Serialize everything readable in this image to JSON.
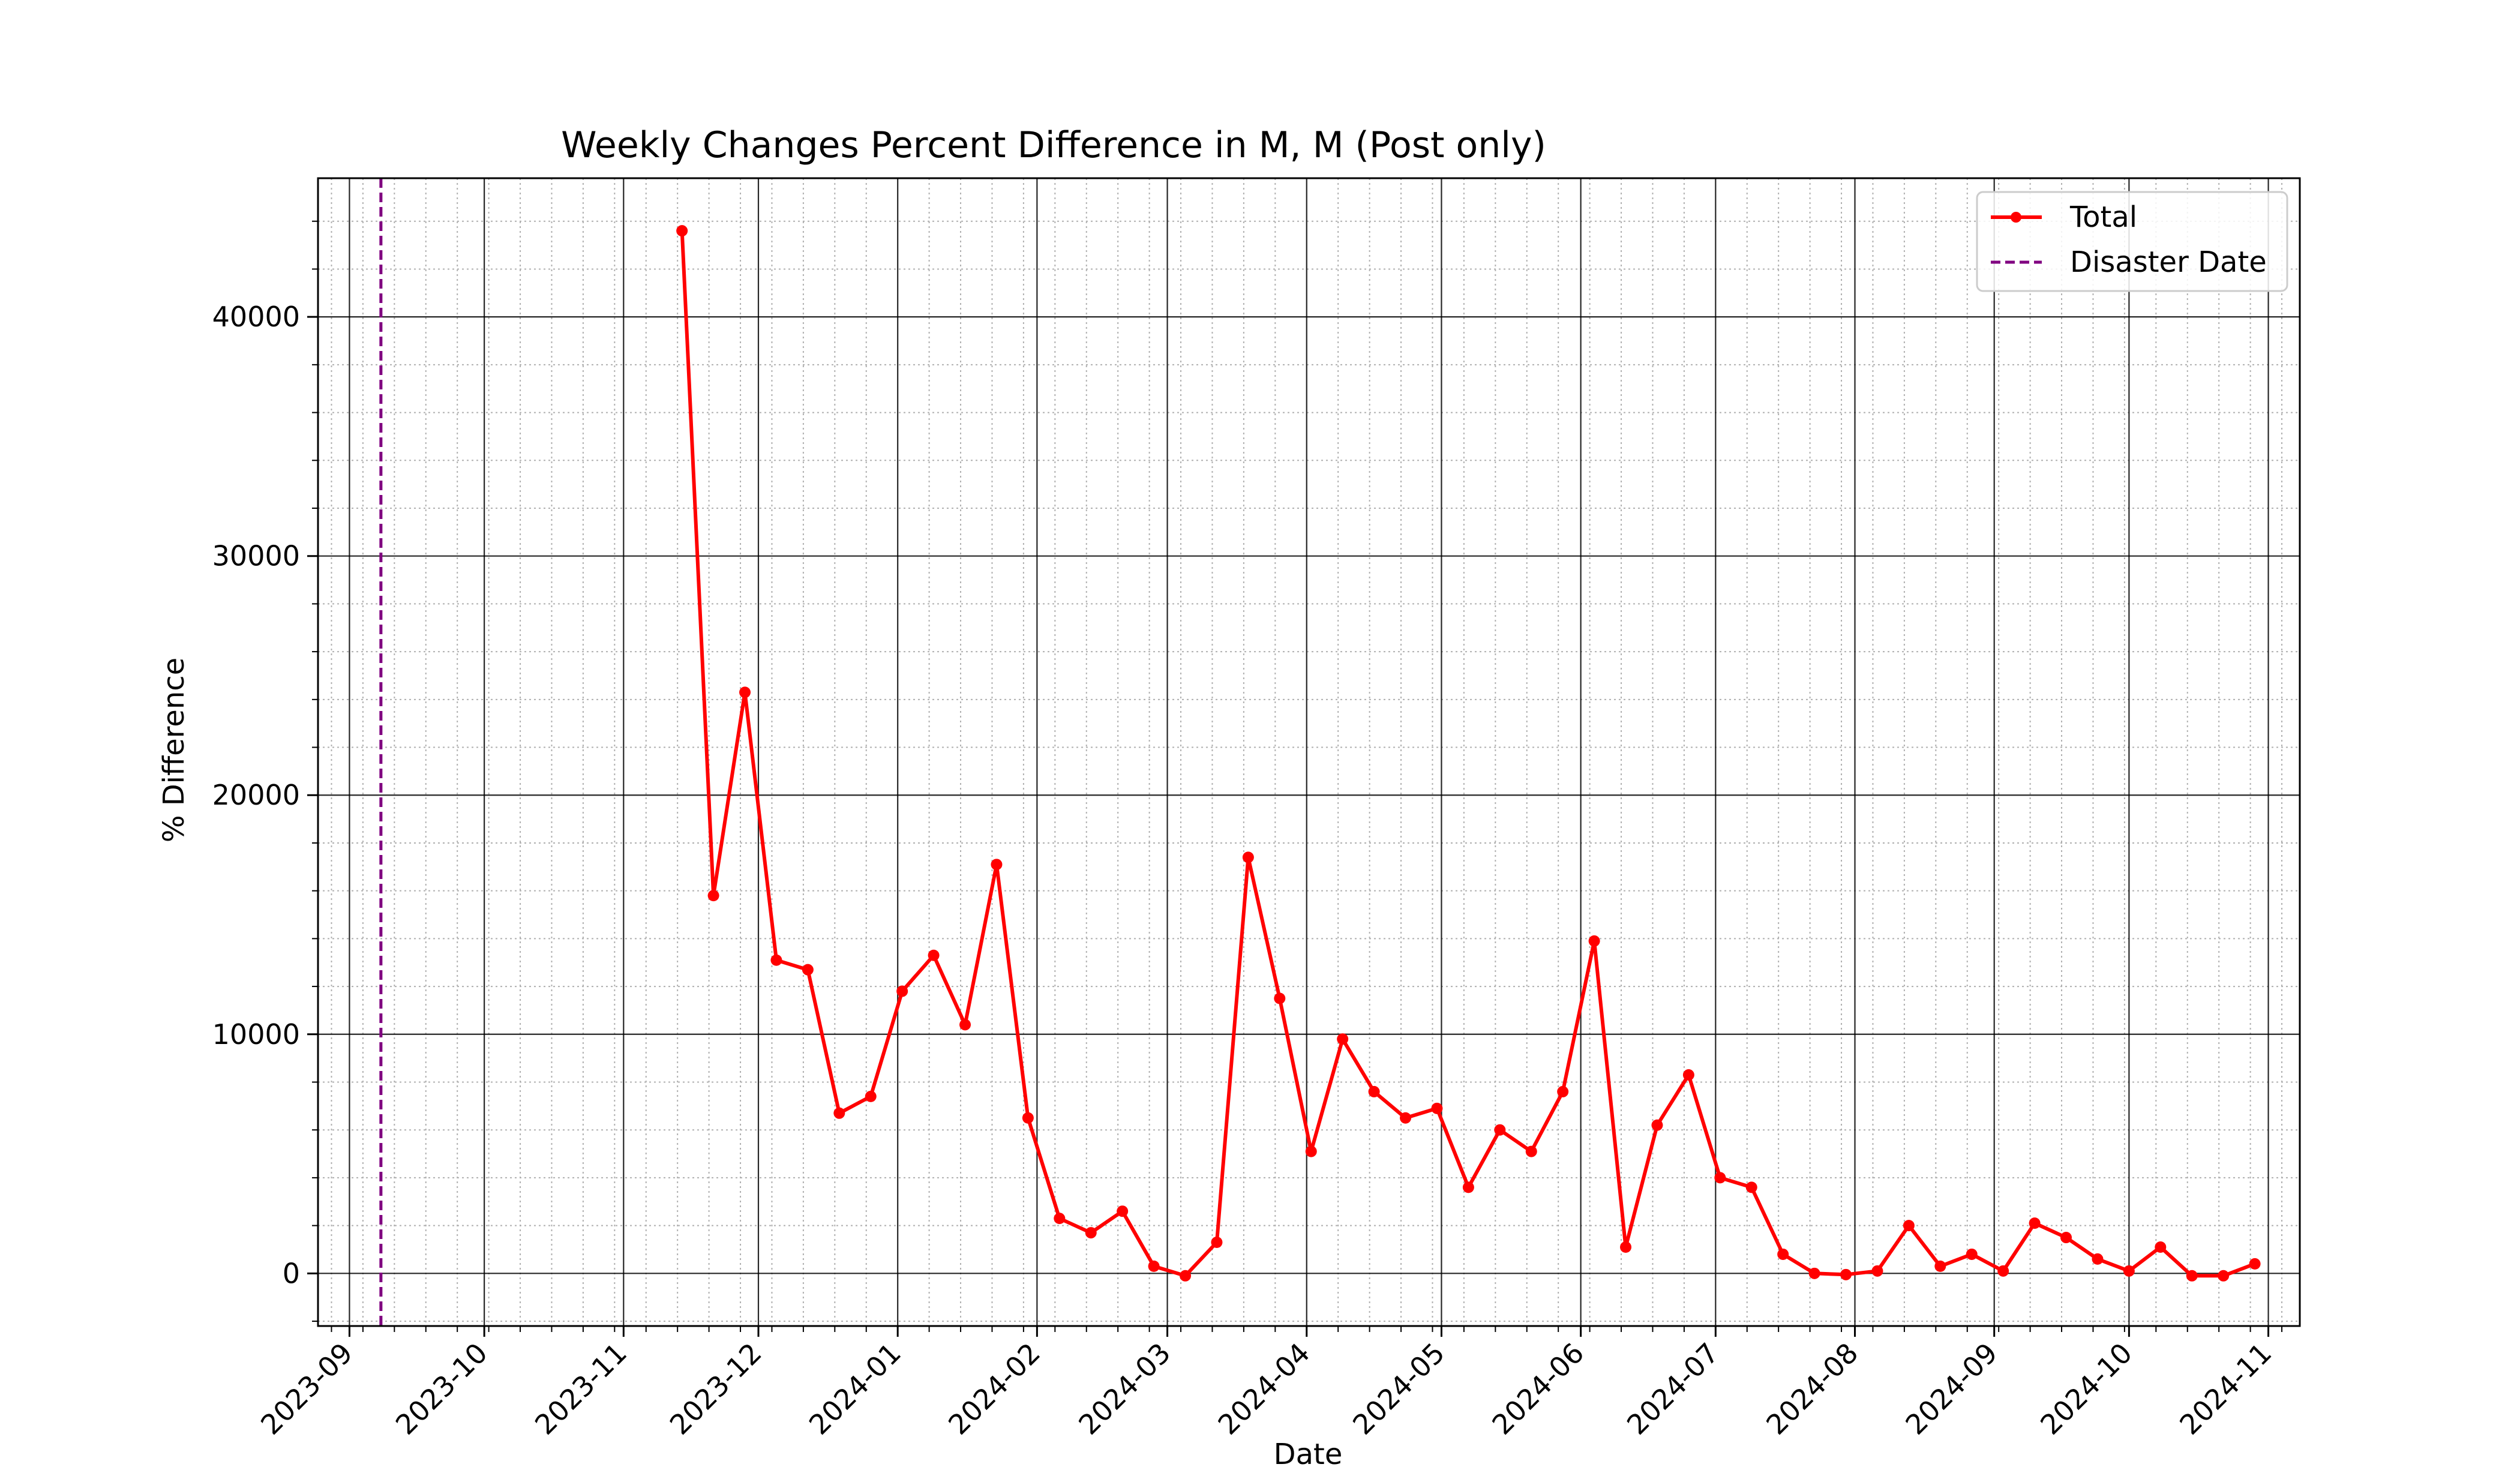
{
  "chart_data": {
    "type": "line",
    "title": "Weekly Changes Percent Difference in M, M (Post only)",
    "xlabel": "Date",
    "ylabel": "% Difference",
    "ylim": [
      -2200,
      45800
    ],
    "xlim": [
      "2023-08-25",
      "2024-11-08"
    ],
    "yticks": [
      0,
      10000,
      20000,
      30000,
      40000
    ],
    "ytick_labels": [
      "0",
      "10000",
      "20000",
      "30000",
      "40000"
    ],
    "xticks": [
      "2023-09-01",
      "2023-10-01",
      "2023-11-01",
      "2023-12-01",
      "2024-01-01",
      "2024-02-01",
      "2024-03-01",
      "2024-04-01",
      "2024-05-01",
      "2024-06-01",
      "2024-07-01",
      "2024-08-01",
      "2024-09-01",
      "2024-10-01",
      "2024-11-01"
    ],
    "xtick_labels": [
      "2023-09",
      "2023-10",
      "2023-11",
      "2023-12",
      "2024-01",
      "2024-02",
      "2024-03",
      "2024-04",
      "2024-05",
      "2024-06",
      "2024-07",
      "2024-08",
      "2024-09",
      "2024-10",
      "2024-11"
    ],
    "grid": true,
    "legend_position": "top-right",
    "series": [
      {
        "name": "Total",
        "color": "#ff0000",
        "x": [
          "2023-11-14",
          "2023-11-21",
          "2023-11-28",
          "2023-12-05",
          "2023-12-12",
          "2023-12-19",
          "2023-12-26",
          "2024-01-02",
          "2024-01-09",
          "2024-01-16",
          "2024-01-23",
          "2024-01-30",
          "2024-02-06",
          "2024-02-13",
          "2024-02-20",
          "2024-02-27",
          "2024-03-05",
          "2024-03-12",
          "2024-03-19",
          "2024-03-26",
          "2024-04-02",
          "2024-04-09",
          "2024-04-16",
          "2024-04-23",
          "2024-04-30",
          "2024-05-07",
          "2024-05-14",
          "2024-05-21",
          "2024-05-28",
          "2024-06-04",
          "2024-06-11",
          "2024-06-18",
          "2024-06-25",
          "2024-07-02",
          "2024-07-09",
          "2024-07-16",
          "2024-07-23",
          "2024-07-30",
          "2024-08-06",
          "2024-08-13",
          "2024-08-20",
          "2024-08-27",
          "2024-09-03",
          "2024-09-10",
          "2024-09-17",
          "2024-09-24",
          "2024-10-01",
          "2024-10-08",
          "2024-10-15",
          "2024-10-22",
          "2024-10-29"
        ],
        "values": [
          43600,
          15800,
          24300,
          13100,
          12700,
          6700,
          7400,
          11800,
          13300,
          10400,
          17100,
          6500,
          2300,
          1700,
          2600,
          300,
          -100,
          1300,
          17400,
          11500,
          5100,
          9800,
          7600,
          6500,
          6900,
          3600,
          6000,
          5100,
          7600,
          13900,
          1100,
          6200,
          8300,
          4000,
          3600,
          800,
          0,
          -50,
          100,
          2000,
          300,
          800,
          100,
          2100,
          1500,
          600,
          100,
          1100,
          -100,
          -100,
          400
        ]
      }
    ],
    "disaster_line": {
      "name": "Disaster Date",
      "date": "2023-09-08",
      "color": "#800080"
    }
  }
}
